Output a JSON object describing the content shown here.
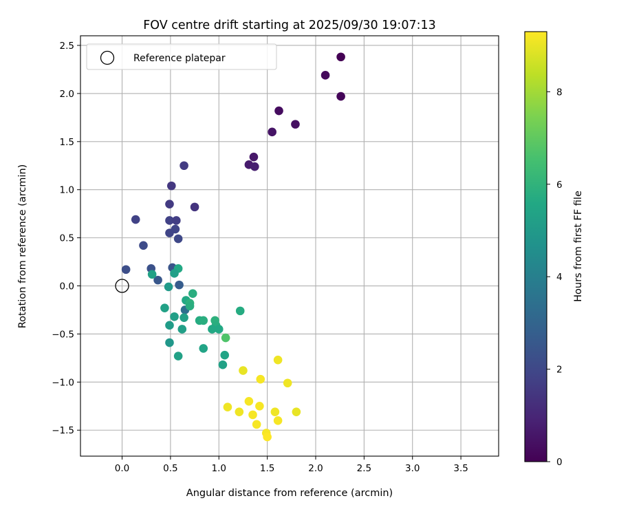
{
  "chart_data": {
    "type": "scatter",
    "title": "FOV centre drift starting at 2025/09/30 19:07:13",
    "xlabel": "Angular distance from reference (arcmin)",
    "ylabel": "Rotation from reference (arcmin)",
    "xlim": [
      -0.43,
      3.89
    ],
    "ylim": [
      -1.77,
      2.6
    ],
    "xticks": [
      0.0,
      0.5,
      1.0,
      1.5,
      2.0,
      2.5,
      3.0,
      3.5
    ],
    "xtick_labels": [
      "0.0",
      "0.5",
      "1.0",
      "1.5",
      "2.0",
      "2.5",
      "3.0",
      "3.5"
    ],
    "yticks": [
      -1.5,
      -1.0,
      -0.5,
      0.0,
      0.5,
      1.0,
      1.5,
      2.0,
      2.5
    ],
    "ytick_labels": [
      "−1.5",
      "−1.0",
      "−0.5",
      "0.0",
      "0.5",
      "1.0",
      "1.5",
      "2.0",
      "2.5"
    ],
    "grid": true,
    "legend": {
      "position": "top-left",
      "label": "Reference platepar"
    },
    "reference_point": {
      "x": 0.0,
      "y": 0.0
    },
    "colorbar": {
      "label": "Hours from first FF file",
      "range": [
        0,
        9.3
      ],
      "ticks": [
        0,
        2,
        4,
        6,
        8
      ],
      "tick_labels": [
        "0",
        "2",
        "4",
        "6",
        "8"
      ],
      "colormap": "viridis"
    },
    "points": [
      {
        "x": 2.26,
        "y": 2.38,
        "hours": 0.0
      },
      {
        "x": 2.26,
        "y": 1.97,
        "hours": 0.1
      },
      {
        "x": 2.1,
        "y": 2.19,
        "hours": 0.2
      },
      {
        "x": 1.62,
        "y": 1.82,
        "hours": 0.3
      },
      {
        "x": 1.79,
        "y": 1.68,
        "hours": 0.4
      },
      {
        "x": 1.55,
        "y": 1.6,
        "hours": 0.5
      },
      {
        "x": 1.36,
        "y": 1.34,
        "hours": 0.6
      },
      {
        "x": 1.31,
        "y": 1.26,
        "hours": 0.7
      },
      {
        "x": 1.37,
        "y": 1.24,
        "hours": 0.8
      },
      {
        "x": 0.64,
        "y": 1.25,
        "hours": 1.6
      },
      {
        "x": 0.51,
        "y": 1.04,
        "hours": 1.5
      },
      {
        "x": 0.49,
        "y": 0.85,
        "hours": 1.6
      },
      {
        "x": 0.75,
        "y": 0.82,
        "hours": 1.4
      },
      {
        "x": 0.14,
        "y": 0.69,
        "hours": 1.8
      },
      {
        "x": 0.49,
        "y": 0.68,
        "hours": 1.8
      },
      {
        "x": 0.56,
        "y": 0.68,
        "hours": 1.7
      },
      {
        "x": 0.55,
        "y": 0.59,
        "hours": 1.9
      },
      {
        "x": 0.49,
        "y": 0.55,
        "hours": 1.9
      },
      {
        "x": 0.58,
        "y": 0.49,
        "hours": 2.0
      },
      {
        "x": 0.22,
        "y": 0.42,
        "hours": 2.1
      },
      {
        "x": 0.04,
        "y": 0.17,
        "hours": 2.2
      },
      {
        "x": 0.3,
        "y": 0.18,
        "hours": 2.3
      },
      {
        "x": 0.52,
        "y": 0.19,
        "hours": 2.4
      },
      {
        "x": 0.37,
        "y": 0.06,
        "hours": 2.5
      },
      {
        "x": 0.59,
        "y": 0.01,
        "hours": 2.7
      },
      {
        "x": 0.65,
        "y": -0.25,
        "hours": 3.4
      },
      {
        "x": 0.58,
        "y": 0.18,
        "hours": 5.6
      },
      {
        "x": 0.31,
        "y": 0.12,
        "hours": 5.3
      },
      {
        "x": 0.54,
        "y": 0.13,
        "hours": 5.2
      },
      {
        "x": 0.48,
        "y": -0.01,
        "hours": 5.0
      },
      {
        "x": 0.73,
        "y": -0.08,
        "hours": 5.8
      },
      {
        "x": 0.66,
        "y": -0.15,
        "hours": 5.6
      },
      {
        "x": 0.7,
        "y": -0.18,
        "hours": 5.9
      },
      {
        "x": 0.7,
        "y": -0.21,
        "hours": 5.8
      },
      {
        "x": 0.44,
        "y": -0.23,
        "hours": 5.3
      },
      {
        "x": 1.22,
        "y": -0.26,
        "hours": 5.7
      },
      {
        "x": 0.54,
        "y": -0.32,
        "hours": 5.2
      },
      {
        "x": 0.64,
        "y": -0.33,
        "hours": 5.2
      },
      {
        "x": 0.8,
        "y": -0.36,
        "hours": 5.7
      },
      {
        "x": 0.84,
        "y": -0.36,
        "hours": 5.8
      },
      {
        "x": 0.96,
        "y": -0.36,
        "hours": 5.9
      },
      {
        "x": 0.49,
        "y": -0.41,
        "hours": 5.1
      },
      {
        "x": 0.97,
        "y": -0.41,
        "hours": 5.8
      },
      {
        "x": 0.93,
        "y": -0.45,
        "hours": 5.6
      },
      {
        "x": 0.62,
        "y": -0.45,
        "hours": 5.2
      },
      {
        "x": 1.0,
        "y": -0.45,
        "hours": 5.6
      },
      {
        "x": 1.07,
        "y": -0.54,
        "hours": 6.7
      },
      {
        "x": 0.49,
        "y": -0.59,
        "hours": 4.9
      },
      {
        "x": 0.84,
        "y": -0.65,
        "hours": 5.4
      },
      {
        "x": 1.06,
        "y": -0.72,
        "hours": 5.4
      },
      {
        "x": 0.58,
        "y": -0.73,
        "hours": 5.3
      },
      {
        "x": 1.04,
        "y": -0.82,
        "hours": 5.3
      },
      {
        "x": 1.61,
        "y": -0.77,
        "hours": 9.1
      },
      {
        "x": 1.25,
        "y": -0.88,
        "hours": 9.0
      },
      {
        "x": 1.43,
        "y": -0.97,
        "hours": 9.2
      },
      {
        "x": 1.71,
        "y": -1.01,
        "hours": 9.1
      },
      {
        "x": 1.09,
        "y": -1.26,
        "hours": 9.1
      },
      {
        "x": 1.31,
        "y": -1.2,
        "hours": 9.2
      },
      {
        "x": 1.42,
        "y": -1.25,
        "hours": 9.2
      },
      {
        "x": 1.21,
        "y": -1.31,
        "hours": 9.1
      },
      {
        "x": 1.35,
        "y": -1.34,
        "hours": 9.2
      },
      {
        "x": 1.58,
        "y": -1.31,
        "hours": 9.1
      },
      {
        "x": 1.8,
        "y": -1.31,
        "hours": 9.0
      },
      {
        "x": 1.61,
        "y": -1.4,
        "hours": 9.2
      },
      {
        "x": 1.39,
        "y": -1.44,
        "hours": 9.2
      },
      {
        "x": 1.49,
        "y": -1.53,
        "hours": 9.2
      },
      {
        "x": 1.5,
        "y": -1.57,
        "hours": 9.3
      }
    ]
  }
}
